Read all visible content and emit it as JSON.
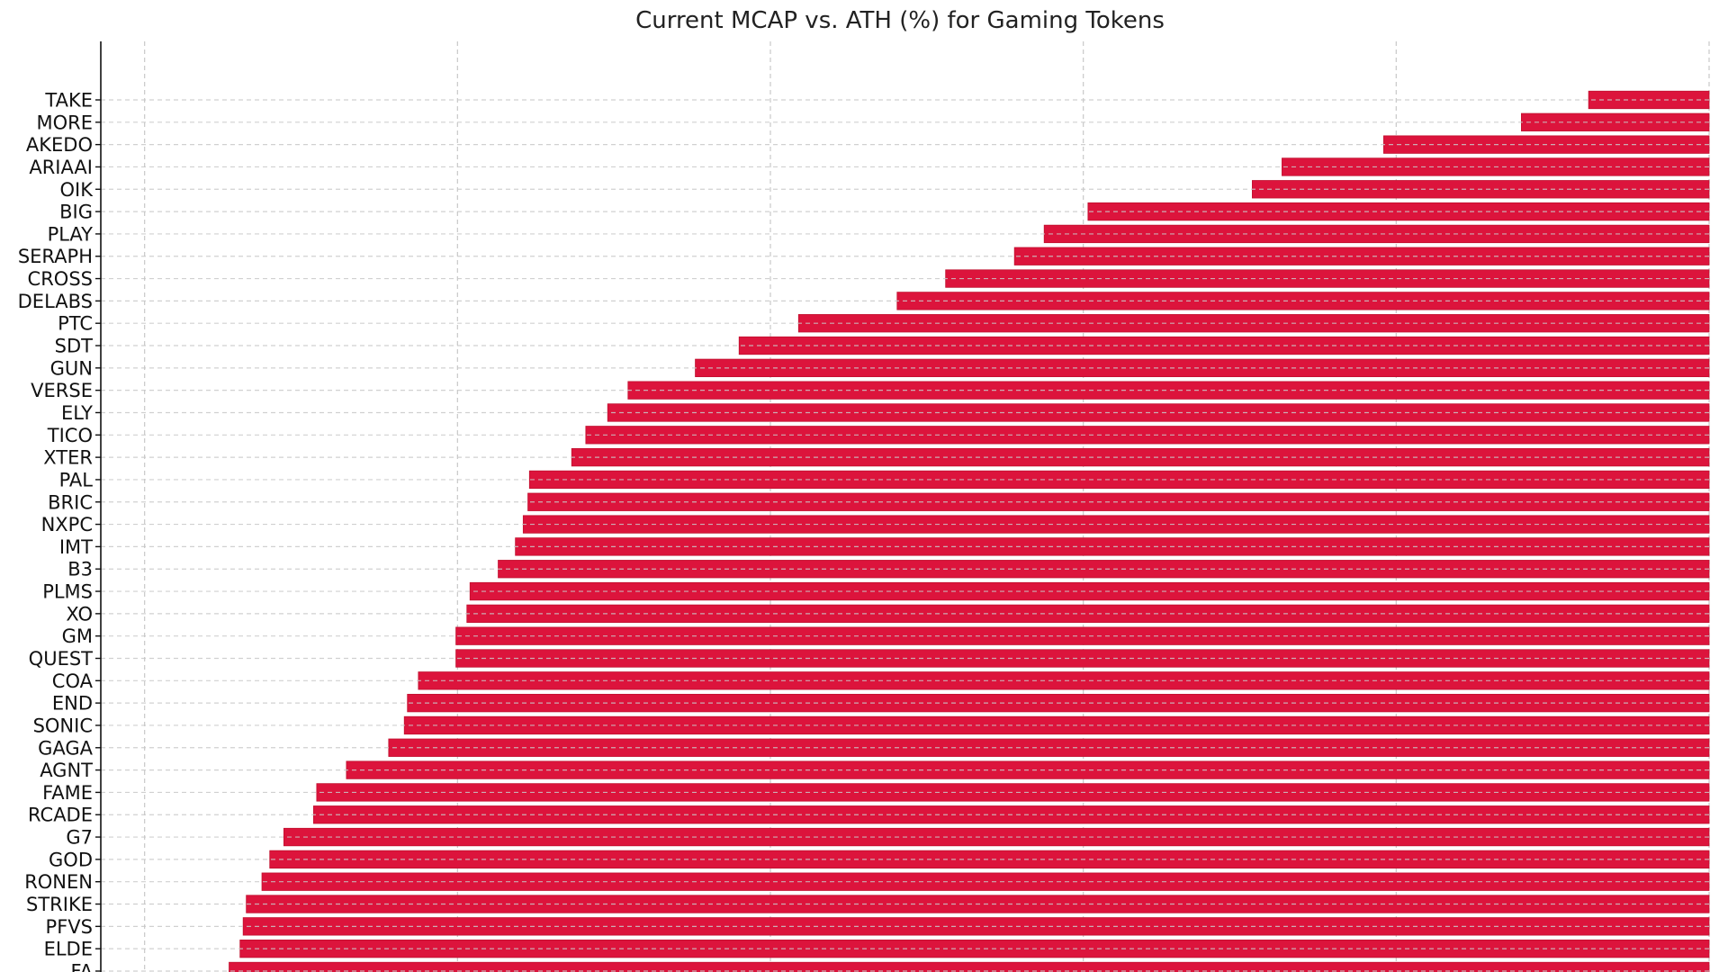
{
  "chart_data": {
    "type": "bar",
    "orientation": "horizontal",
    "title": "Current MCAP vs. ATH (%) for Gaming Tokens",
    "xlabel": "",
    "ylabel": "",
    "xlim": [
      -102.8,
      0
    ],
    "grid": true,
    "bar_color": "#dc143c",
    "categories": [
      "TAKE",
      "MORE",
      "AKEDO",
      "ARIAAI",
      "OIK",
      "BIG",
      "PLAY",
      "SERAPH",
      "CROSS",
      "DELABS",
      "PTC",
      "SDT",
      "GUN",
      "VERSE",
      "ELY",
      "TICO",
      "XTER",
      "PAL",
      "BRIC",
      "NXPC",
      "IMT",
      "B3",
      "PLMS",
      "XO",
      "GM",
      "QUEST",
      "COA",
      "END",
      "SONIC",
      "GAGA",
      "AGNT",
      "FAME",
      "RCADE",
      "G7",
      "GOD",
      "RONEN",
      "STRIKE",
      "PFVS",
      "ELDE",
      "FA"
    ],
    "values": [
      -7.7,
      -12.0,
      -20.8,
      -27.3,
      -29.2,
      -39.7,
      -42.5,
      -44.4,
      -48.8,
      -51.9,
      -58.2,
      -62.0,
      -64.8,
      -69.1,
      -70.4,
      -71.8,
      -72.7,
      -75.4,
      -75.5,
      -75.8,
      -76.3,
      -77.4,
      -79.2,
      -79.4,
      -80.1,
      -80.1,
      -82.5,
      -83.2,
      -83.4,
      -84.4,
      -87.1,
      -89.0,
      -89.2,
      -91.1,
      -92.0,
      -92.5,
      -93.5,
      -93.7,
      -93.9,
      -94.6
    ]
  }
}
